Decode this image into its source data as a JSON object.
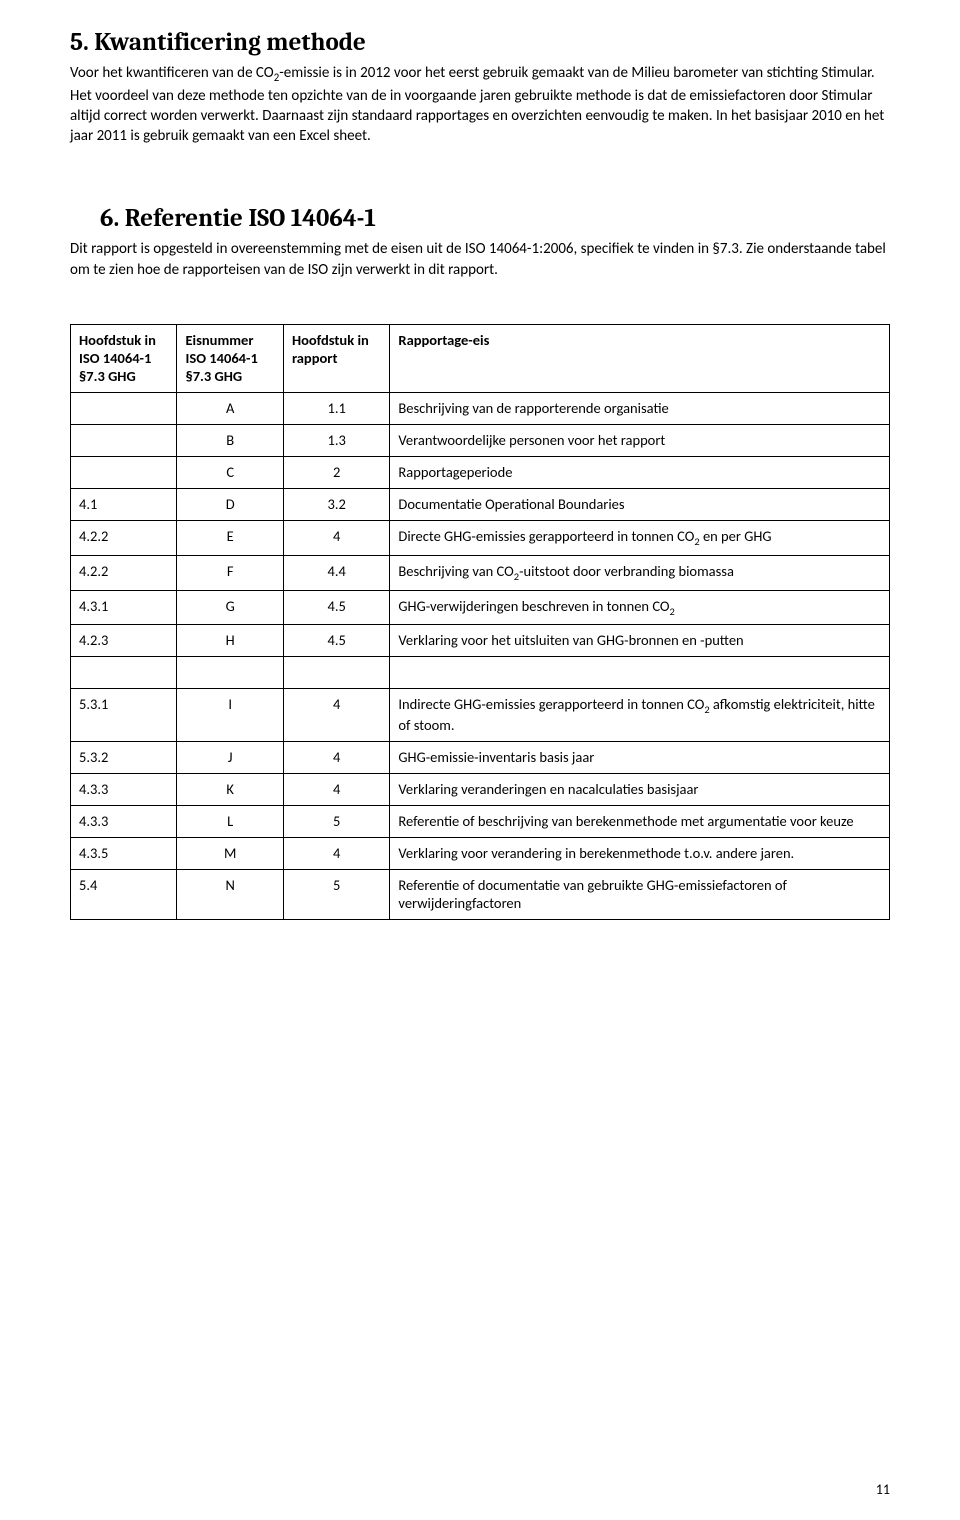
{
  "section5": {
    "heading": "5. Kwantificering methode",
    "para1_html": "Voor het kwantificeren van de CO<sub>2</sub>-emissie is in 2012 voor het eerst gebruik gemaakt van de Milieu barometer van stichting Stimular. Het voordeel van deze methode ten opzichte van de in voorgaande jaren gebruikte methode is dat de emissiefactoren door Stimular altijd correct worden verwerkt. Daarnaast zijn standaard rapportages en overzichten eenvoudig te maken. In het basisjaar 2010 en het jaar 2011 is gebruik gemaakt van een Excel sheet."
  },
  "section6": {
    "heading": "6. Referentie ISO 14064-1",
    "para1_html": "Dit rapport is opgesteld in overeenstemming met de eisen uit de ISO 14064-1:2006, specifiek te vinden in §7.3. Zie onderstaande tabel om te zien hoe de rapporteisen van de ISO zijn verwerkt in dit rapport."
  },
  "table": {
    "headers": {
      "c0": "Hoofdstuk in ISO 14064-1 §7.3 GHG",
      "c1": "Eisnummer ISO 14064-1 §7.3 GHG",
      "c2": "Hoofdstuk in rapport",
      "c3": "Rapportage-eis"
    },
    "rows": [
      {
        "c0": "",
        "c1": "A",
        "c2": "1.1",
        "c3_html": "Beschrijving van de rapporterende organisatie"
      },
      {
        "c0": "",
        "c1": "B",
        "c2": "1.3",
        "c3_html": "Verantwoordelijke personen voor het rapport"
      },
      {
        "c0": "",
        "c1": "C",
        "c2": "2",
        "c3_html": "Rapportageperiode"
      },
      {
        "c0": "4.1",
        "c1": "D",
        "c2": "3.2",
        "c3_html": "Documentatie Operational Boundaries"
      },
      {
        "c0": "4.2.2",
        "c1": "E",
        "c2": "4",
        "c3_html": "Directe GHG-emissies gerapporteerd in tonnen CO<sub>2</sub> en per GHG"
      },
      {
        "c0": "4.2.2",
        "c1": "F",
        "c2": "4.4",
        "c3_html": "Beschrijving van CO<sub>2</sub>-uitstoot door verbranding biomassa"
      },
      {
        "c0": "4.3.1",
        "c1": "G",
        "c2": "4.5",
        "c3_html": "GHG-verwijderingen beschreven in tonnen CO<sub>2</sub>"
      },
      {
        "c0": "4.2.3",
        "c1": "H",
        "c2": "4.5",
        "c3_html": "Verklaring voor het uitsluiten van GHG-bronnen en -putten"
      },
      {
        "gap": true
      },
      {
        "c0": "5.3.1",
        "c1": "I",
        "c2": "4",
        "c3_html": "Indirecte GHG-emissies gerapporteerd  in tonnen CO<sub>2</sub> afkomstig elektriciteit, hitte of stoom."
      },
      {
        "c0": "5.3.2",
        "c1": "J",
        "c2": "4",
        "c3_html": "GHG-emissie-inventaris basis jaar"
      },
      {
        "c0": "4.3.3",
        "c1": "K",
        "c2": "4",
        "c3_html": "Verklaring veranderingen en nacalculaties basisjaar"
      },
      {
        "c0": "4.3.3",
        "c1": "L",
        "c2": "5",
        "c3_html": "Referentie of beschrijving van berekenmethode met argumentatie voor keuze"
      },
      {
        "c0": "4.3.5",
        "c1": "M",
        "c2": "4",
        "c3_html": "Verklaring voor verandering in berekenmethode t.o.v. andere jaren."
      },
      {
        "c0": "5.4",
        "c1": "N",
        "c2": "5",
        "c3_html": "Referentie of documentatie van gebruikte GHG-emissiefactoren of verwijderingfactoren"
      }
    ]
  },
  "page_number": "11"
}
